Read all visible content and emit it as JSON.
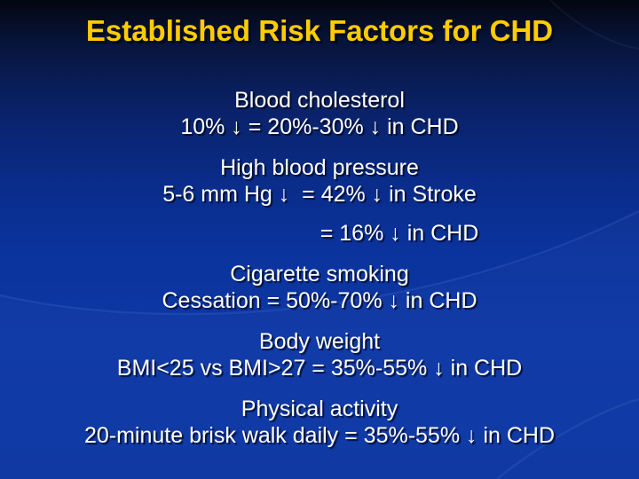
{
  "slide": {
    "title": "Established Risk Factors for CHD",
    "title_color": "#FFCC00",
    "text_color": "#FFFFFF",
    "background_top_color": "#04060F",
    "background_bottom_color": "#0B35A2",
    "arrow_symbol_name": "down-arrow (decrease)",
    "sections": [
      {
        "heading": "Blood cholesterol",
        "lines": [
          {
            "text": "10% ↓ = 20%-30% ↓ in CHD"
          }
        ]
      },
      {
        "heading": "High blood pressure",
        "lines": [
          {
            "text": "5-6 mm Hg ↓  = 42% ↓ in Stroke"
          },
          {
            "text": "= 16% ↓ in CHD",
            "offset": true
          }
        ]
      },
      {
        "heading": "Cigarette smoking",
        "lines": [
          {
            "text": "Cessation = 50%-70% ↓ in CHD"
          }
        ]
      },
      {
        "heading": "Body weight",
        "lines": [
          {
            "text": "BMI<25 vs BMI>27 = 35%-55% ↓ in CHD"
          }
        ]
      },
      {
        "heading": "Physical activity",
        "lines": [
          {
            "text": "20-minute brisk walk daily = 35%-55% ↓ in CHD"
          }
        ]
      }
    ]
  }
}
